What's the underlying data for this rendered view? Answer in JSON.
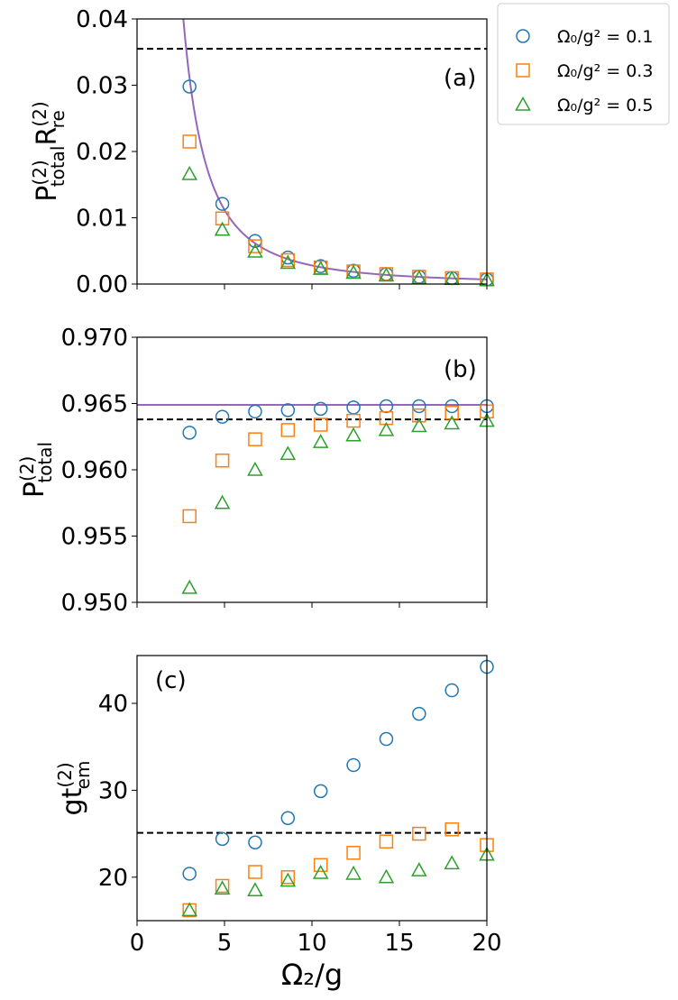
{
  "colors": {
    "series1": "#1f77b4",
    "series2": "#ff7f0e",
    "series3": "#2ca02c",
    "theory": "#9467bd",
    "reference": "#000000"
  },
  "xlabel": "Ω₂/g",
  "x_ticks": [
    "0",
    "5",
    "10",
    "15",
    "20"
  ],
  "legend": {
    "placement": "outside-top-right",
    "entries": [
      {
        "label": "Ω₀/g² = 0.1",
        "marker": "circle"
      },
      {
        "label": "Ω₀/g² = 0.3",
        "marker": "square"
      },
      {
        "label": "Ω₀/g² = 0.5",
        "marker": "triangle"
      }
    ]
  },
  "chart_data": [
    {
      "type": "scatter",
      "panel": "(a)",
      "ylabel": "P_total^(2) R_re^(2)",
      "xlim": [
        0,
        20
      ],
      "ylim": [
        0,
        0.04
      ],
      "y_ticks": [
        "0.00",
        "0.01",
        "0.02",
        "0.03",
        "0.04"
      ],
      "x": [
        3,
        4.875,
        6.75,
        8.625,
        10.5,
        12.375,
        14.25,
        16.125,
        18,
        20
      ],
      "series": [
        {
          "name": "Ω₀/g² = 0.1",
          "values": [
            0.0298,
            0.0121,
            0.0065,
            0.004,
            0.0027,
            0.002,
            0.0015,
            0.0011,
            0.0009,
            0.0007
          ]
        },
        {
          "name": "Ω₀/g² = 0.3",
          "values": [
            0.0215,
            0.0099,
            0.0057,
            0.0036,
            0.0025,
            0.0019,
            0.0015,
            0.0011,
            0.0009,
            0.0007
          ]
        },
        {
          "name": "Ω₀/g² = 0.5",
          "values": [
            0.0166,
            0.0082,
            0.0049,
            0.0032,
            0.0023,
            0.0017,
            0.0013,
            0.0009,
            0.0008,
            0.0006
          ]
        }
      ],
      "reference_line": 0.0355,
      "theory_curve": {
        "form": "A / x^2",
        "A": 0.28,
        "x_start": 2.6
      }
    },
    {
      "type": "scatter",
      "panel": "(b)",
      "ylabel": "P_total^(2)",
      "xlim": [
        0,
        20
      ],
      "ylim": [
        0.95,
        0.97
      ],
      "y_ticks": [
        "0.950",
        "0.955",
        "0.960",
        "0.965",
        "0.970"
      ],
      "x": [
        3,
        4.875,
        6.75,
        8.625,
        10.5,
        12.375,
        14.25,
        16.125,
        18,
        20
      ],
      "series": [
        {
          "name": "Ω₀/g² = 0.1",
          "values": [
            0.9628,
            0.964,
            0.9644,
            0.9645,
            0.9646,
            0.9647,
            0.9648,
            0.9648,
            0.9648,
            0.9648
          ]
        },
        {
          "name": "Ω₀/g² = 0.3",
          "values": [
            0.9565,
            0.9607,
            0.9623,
            0.963,
            0.9634,
            0.9637,
            0.9639,
            0.9641,
            0.9643,
            0.9644
          ]
        },
        {
          "name": "Ω₀/g² = 0.5",
          "values": [
            0.9511,
            0.9575,
            0.96,
            0.9612,
            0.9621,
            0.9626,
            0.963,
            0.9633,
            0.9635,
            0.9637
          ]
        }
      ],
      "reference_line": 0.9638,
      "theory_curve": {
        "form": "constant",
        "value": 0.9649
      }
    },
    {
      "type": "scatter",
      "panel": "(c)",
      "ylabel": "g t_em^(2)",
      "xlim": [
        0,
        20
      ],
      "ylim": [
        15,
        45.5
      ],
      "y_ticks": [
        "20",
        "30",
        "40"
      ],
      "x": [
        3,
        4.875,
        6.75,
        8.625,
        10.5,
        12.375,
        14.25,
        16.125,
        18,
        20
      ],
      "series": [
        {
          "name": "Ω₀/g² = 0.1",
          "values": [
            20.4,
            24.4,
            24.0,
            26.8,
            29.9,
            32.9,
            35.9,
            38.8,
            41.5,
            44.2
          ]
        },
        {
          "name": "Ω₀/g² = 0.3",
          "values": [
            16.2,
            19.0,
            20.6,
            20.0,
            21.4,
            22.8,
            24.1,
            25.0,
            25.5,
            23.7
          ]
        },
        {
          "name": "Ω₀/g² = 0.5",
          "values": [
            16.2,
            18.7,
            18.5,
            19.6,
            20.5,
            20.4,
            20.0,
            20.8,
            21.6,
            22.6
          ]
        }
      ],
      "reference_line": 25.1
    }
  ]
}
